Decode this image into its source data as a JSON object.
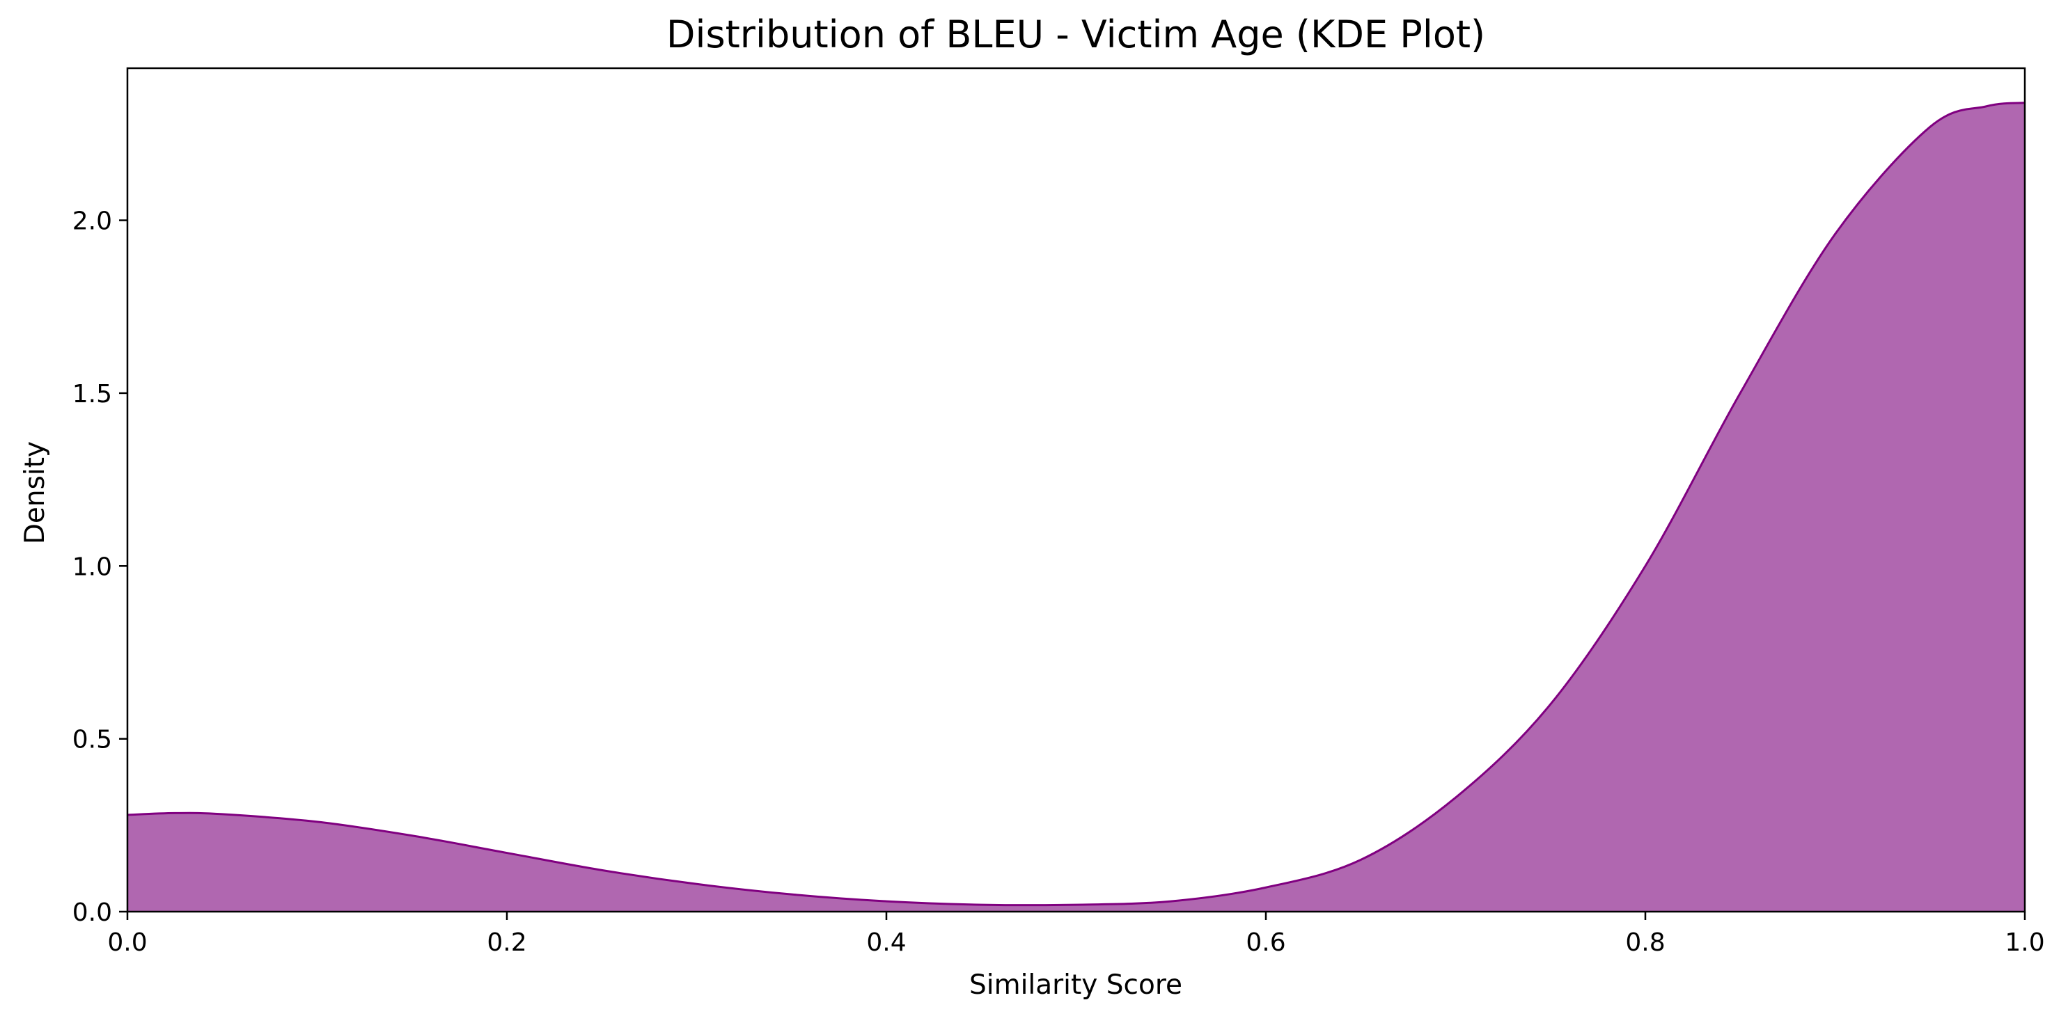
{
  "chart_data": {
    "type": "area",
    "title": "Distribution of BLEU - Victim Age (KDE Plot)",
    "xlabel": "Similarity Score",
    "ylabel": "Density",
    "xlim": [
      0.0,
      1.0
    ],
    "ylim": [
      0.0,
      2.44
    ],
    "x_ticks": [
      "0.0",
      "0.2",
      "0.4",
      "0.6",
      "0.8",
      "1.0"
    ],
    "y_ticks": [
      "0.0",
      "0.5",
      "1.0",
      "1.5",
      "2.0"
    ],
    "grid": false,
    "legend": "none",
    "colors": {
      "fill": "#b067b0",
      "line": "#800080"
    },
    "series": [
      {
        "x": [
          0.0,
          0.025,
          0.05,
          0.1,
          0.15,
          0.2,
          0.25,
          0.3,
          0.35,
          0.4,
          0.45,
          0.5,
          0.55,
          0.6,
          0.65,
          0.7,
          0.75,
          0.8,
          0.85,
          0.9,
          0.95,
          0.98,
          1.0
        ],
        "y": [
          0.28,
          0.285,
          0.282,
          0.26,
          0.22,
          0.17,
          0.12,
          0.08,
          0.05,
          0.03,
          0.02,
          0.02,
          0.03,
          0.07,
          0.15,
          0.33,
          0.6,
          1.0,
          1.5,
          1.96,
          2.27,
          2.33,
          2.34
        ]
      }
    ]
  }
}
